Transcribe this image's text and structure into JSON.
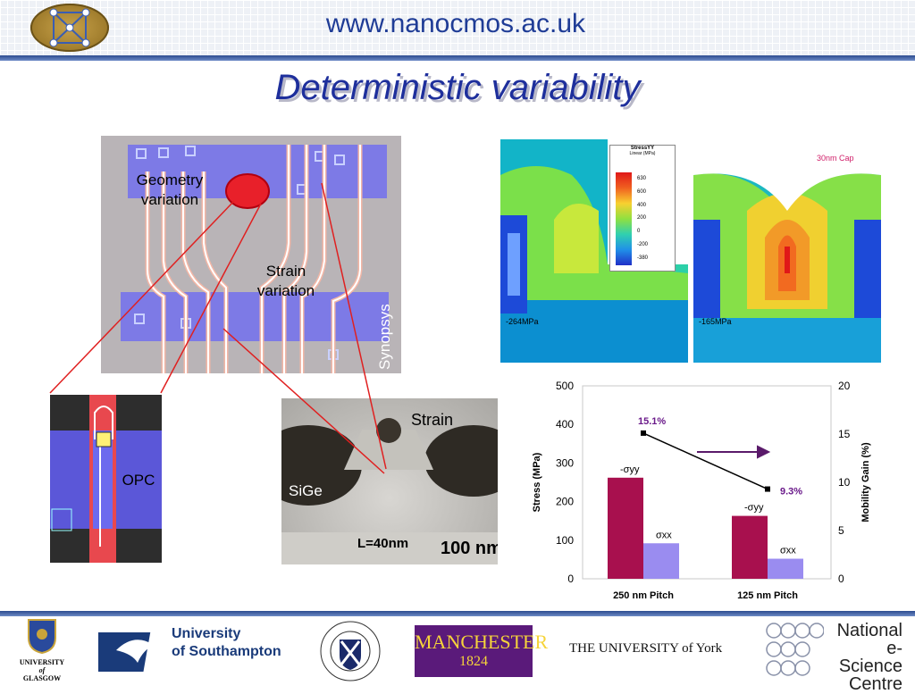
{
  "header": {
    "url": "www.nanocmos.ac.uk",
    "title": "Deterministic variability",
    "logo_icon": "network-logo-icon"
  },
  "figure": {
    "geometry_label_1": "Geometry",
    "geometry_label_2": "variation",
    "strain_variation_1": "Strain",
    "strain_variation_2": "variation",
    "synopsys": "Synopsys",
    "opc": "OPC",
    "tem_strain": "Strain",
    "tem_sige": "SiGe",
    "tem_length": "L=40nm",
    "tem_scale": "100 nm",
    "sim_left_value": "-264MPa",
    "sim_right_value": "-165MPa",
    "sim_right_cap": "30nm Cap",
    "legend_title": "StressYY",
    "legend_unit": "Linear (MPa)",
    "legend_ticks": [
      "630",
      "600",
      "400",
      "200",
      "0",
      "-200",
      "-380"
    ]
  },
  "chart_data": {
    "type": "bar",
    "categories": [
      "250 nm Pitch",
      "125 nm Pitch"
    ],
    "series": [
      {
        "name": "-σyy",
        "values": [
          262,
          163
        ],
        "color": "#a8104e"
      },
      {
        "name": "σxx",
        "values": [
          92,
          52
        ],
        "color": "#9a8cf0"
      }
    ],
    "line": {
      "name": "Mobility Gain",
      "values": [
        15.1,
        9.3
      ],
      "labels": [
        "15.1%",
        "9.3%"
      ],
      "axis": "right"
    },
    "ylabel": "Stress (MPa)",
    "y2label": "Mobility Gain (%)",
    "ylim": [
      0,
      500
    ],
    "y2lim": [
      0,
      20
    ],
    "yticks": [
      0,
      100,
      200,
      300,
      400,
      500
    ],
    "y2ticks": [
      0,
      5,
      10,
      15,
      20
    ],
    "grid": false,
    "annotations": [
      "-σyy",
      "σxx",
      "-σyy",
      "σxx"
    ]
  },
  "footer": {
    "glasgow_1": "UNIVERSITY",
    "glasgow_2": "of",
    "glasgow_3": "GLASGOW",
    "southampton_1": "University",
    "southampton_2": "of Southampton",
    "edinburgh_seal": "THE UNIVERSITY OF EDINBURGH",
    "manchester_1": "MANCHESTER",
    "manchester_2": "1824",
    "york": "THE UNIVERSITY of York",
    "nesc_1": "National",
    "nesc_2": "e-Science",
    "nesc_3": "Centre"
  },
  "colors": {
    "accent": "#1e2f9c",
    "bar1": "#a8104e",
    "bar2": "#9a8cf0"
  }
}
